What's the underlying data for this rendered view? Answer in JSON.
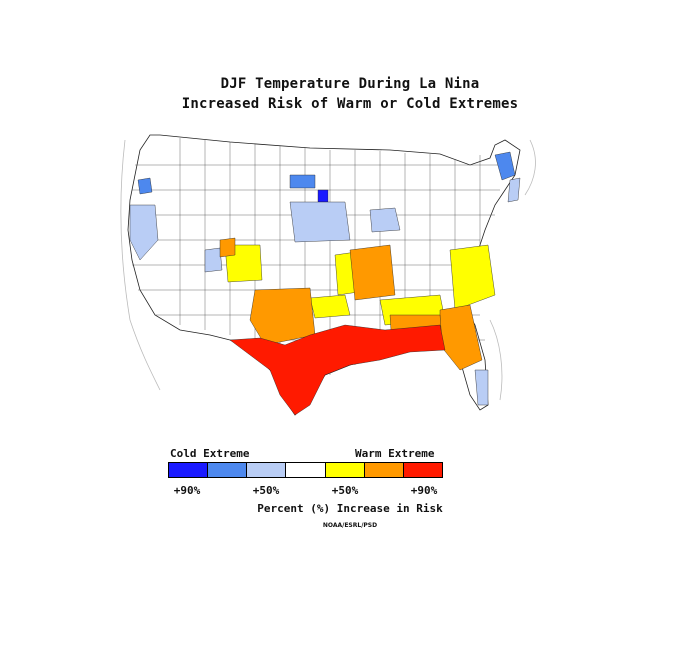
{
  "title_line1": "DJF Temperature During La Nina",
  "title_line2": "Increased Risk of Warm or Cold Extremes",
  "legend": {
    "cold_label": "Cold Extreme",
    "warm_label": "Warm Extreme",
    "colors": [
      "#1a1aff",
      "#4d88ee",
      "#b9cdf5",
      "#ffffff",
      "#ffff00",
      "#ff9900",
      "#ff1a00"
    ],
    "ticks": [
      "+90%",
      "+50%",
      "+50%",
      "+90%"
    ],
    "caption": "Percent (%) Increase in Risk",
    "credit": "NOAA/ESRL/PSD"
  },
  "region_colors": {
    "strong_cold": "#1a1aff",
    "cold": "#4d88ee",
    "light_cold": "#b9cdf5",
    "neutral": "#ffffff",
    "light_warm": "#ffff00",
    "warm": "#ff9900",
    "strong_warm": "#ff1a00"
  }
}
